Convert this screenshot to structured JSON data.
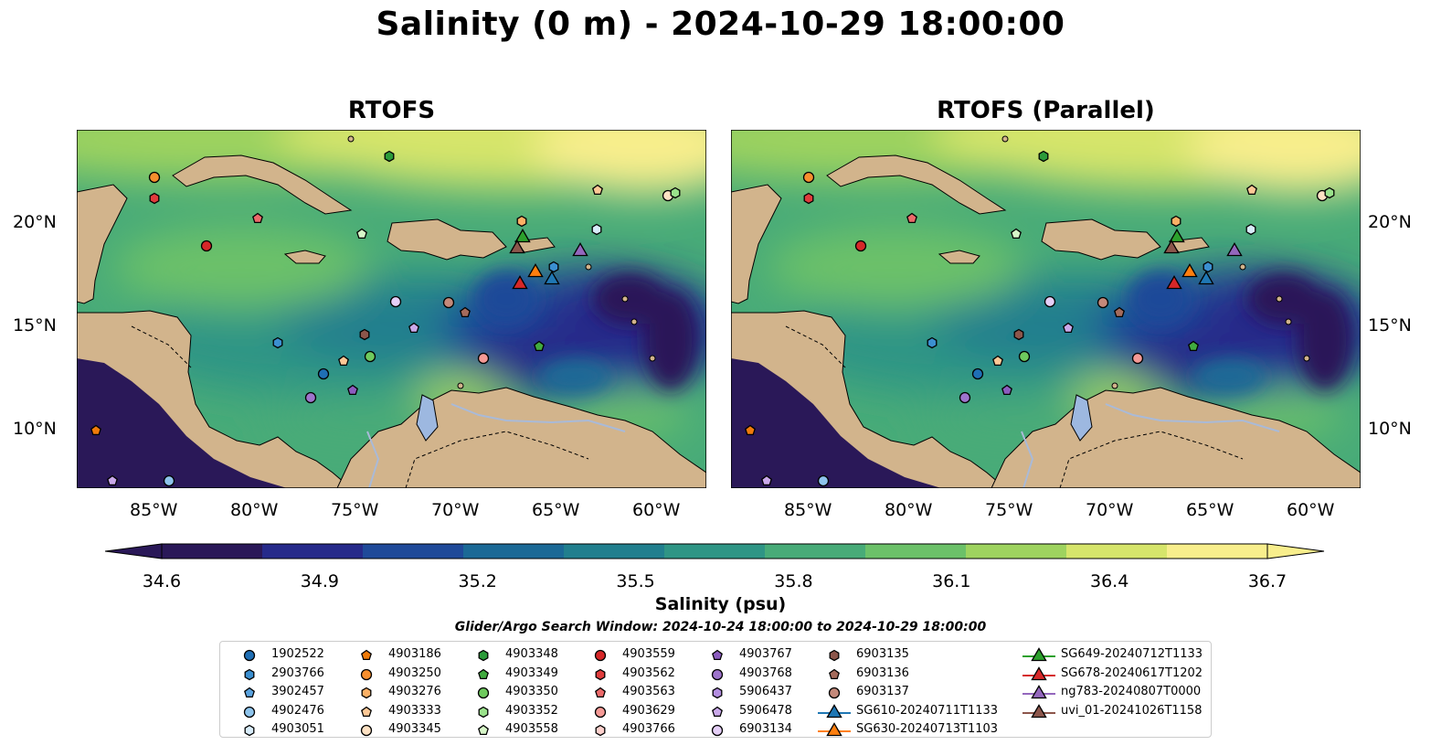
{
  "title": "Salinity (0 m) - 2024-10-29 18:00:00",
  "panels": [
    {
      "title": "RTOFS"
    },
    {
      "title": "RTOFS (Parallel)"
    }
  ],
  "lat_labels": [
    "20°N",
    "15°N",
    "10°N"
  ],
  "lon_labels": [
    "85°W",
    "80°W",
    "75°W",
    "70°W",
    "65°W",
    "60°W"
  ],
  "colorbar": {
    "ticks": [
      "34.6",
      "34.9",
      "35.2",
      "35.5",
      "35.8",
      "36.1",
      "36.4",
      "36.7"
    ],
    "label": "Salinity (psu)",
    "min": 34.6,
    "max": 36.7,
    "colors": [
      "#2a1858",
      "#262a8a",
      "#1f4a99",
      "#1b6996",
      "#217f8e",
      "#2f9585",
      "#48ab78",
      "#6cc169",
      "#9ed35f",
      "#d6e56b",
      "#f8ee8c"
    ]
  },
  "search_window": "Glider/Argo Search Window: 2024-10-24 18:00:00 to 2024-10-29 18:00:00",
  "colors": {
    "land": "#d2b48c",
    "lake": "#9db8e0",
    "river": "#a9bad8"
  },
  "legend": [
    {
      "label": "1902522",
      "marker": "circle",
      "color": "#1f6fb5"
    },
    {
      "label": "2903766",
      "marker": "hexagon",
      "color": "#3b8fd0"
    },
    {
      "label": "3902457",
      "marker": "pentagon",
      "color": "#5aa3df"
    },
    {
      "label": "4902476",
      "marker": "circle",
      "color": "#8ec4ec"
    },
    {
      "label": "4903051",
      "marker": "hexagon",
      "color": "#d8ecfa"
    },
    {
      "label": "4903186",
      "marker": "pentagon",
      "color": "#f07b0a"
    },
    {
      "label": "4903250",
      "marker": "circle",
      "color": "#f78f2e"
    },
    {
      "label": "4903276",
      "marker": "hexagon",
      "color": "#fbb065"
    },
    {
      "label": "4903333",
      "marker": "pentagon",
      "color": "#fdc896"
    },
    {
      "label": "4903345",
      "marker": "circle",
      "color": "#fee2c4"
    },
    {
      "label": "4903348",
      "marker": "hexagon",
      "color": "#2c9b3a"
    },
    {
      "label": "4903349",
      "marker": "pentagon",
      "color": "#41ab3f"
    },
    {
      "label": "4903350",
      "marker": "circle",
      "color": "#6fca5e"
    },
    {
      "label": "4903352",
      "marker": "hexagon",
      "color": "#9ae28b"
    },
    {
      "label": "4903558",
      "marker": "pentagon",
      "color": "#d7f7c8"
    },
    {
      "label": "4903559",
      "marker": "circle",
      "color": "#d62728"
    },
    {
      "label": "4903562",
      "marker": "hexagon",
      "color": "#e03c3c"
    },
    {
      "label": "4903563",
      "marker": "pentagon",
      "color": "#ec6a6a"
    },
    {
      "label": "4903629",
      "marker": "circle",
      "color": "#f59a96"
    },
    {
      "label": "4903766",
      "marker": "hexagon",
      "color": "#fcd0cc"
    },
    {
      "label": "4903767",
      "marker": "pentagon",
      "color": "#8c5cbf"
    },
    {
      "label": "4903768",
      "marker": "circle",
      "color": "#9e74cc"
    },
    {
      "label": "5906437",
      "marker": "hexagon",
      "color": "#b38de0"
    },
    {
      "label": "5906478",
      "marker": "pentagon",
      "color": "#caa9ea"
    },
    {
      "label": "6903134",
      "marker": "circle",
      "color": "#e5cff7"
    },
    {
      "label": "6903135",
      "marker": "hexagon",
      "color": "#8c564b"
    },
    {
      "label": "6903136",
      "marker": "pentagon",
      "color": "#a56b5c"
    },
    {
      "label": "6903137",
      "marker": "circle",
      "color": "#c4897a"
    },
    {
      "label": "SG610-20240711T1133",
      "marker": "triangle",
      "color": "#1f77b4"
    },
    {
      "label": "SG630-20240713T1103",
      "marker": "triangle",
      "color": "#ff7f0e"
    },
    {
      "label": "SG649-20240712T1133",
      "marker": "triangle",
      "color": "#2ca02c"
    },
    {
      "label": "SG678-20240617T1202",
      "marker": "triangle",
      "color": "#d62728"
    },
    {
      "label": "ng783-20240807T0000",
      "marker": "triangle",
      "color": "#9467bd"
    },
    {
      "label": "uvi_01-20241026T1158",
      "marker": "triangle",
      "color": "#8c564b"
    }
  ]
}
